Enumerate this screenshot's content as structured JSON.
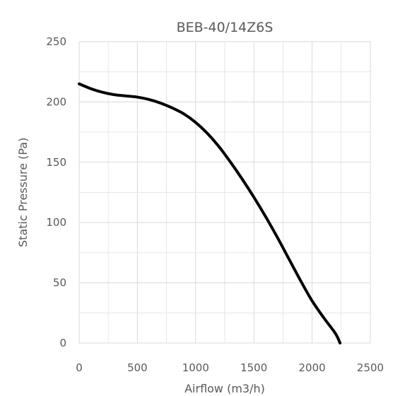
{
  "chart_data": {
    "type": "line",
    "title": "BEB-40/14Z6S",
    "xlabel": "Airflow (m3/h)",
    "ylabel": "Static Pressure (Pa)",
    "xlim": [
      0,
      2500
    ],
    "ylim": [
      0,
      250
    ],
    "x_ticks": [
      "0",
      "500",
      "1000",
      "1500",
      "2000",
      "2500"
    ],
    "y_ticks": [
      "0",
      "50",
      "100",
      "150",
      "200",
      "250"
    ],
    "grid": true,
    "legend": "none",
    "series": [
      {
        "color": "#000000",
        "x": [
          0,
          100,
          200,
          300,
          400,
          500,
          600,
          700,
          800,
          900,
          1000,
          1100,
          1200,
          1300,
          1400,
          1500,
          1600,
          1700,
          1800,
          1900,
          2000,
          2100,
          2200,
          2240
        ],
        "y": [
          215,
          211,
          208,
          206,
          205,
          204,
          202,
          199,
          195,
          190,
          183,
          174,
          163,
          150,
          136,
          121,
          105,
          88,
          70,
          52,
          35,
          21,
          8,
          0
        ]
      }
    ]
  }
}
